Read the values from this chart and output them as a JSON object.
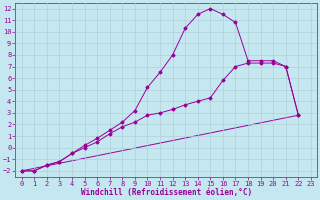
{
  "xlabel": "Windchill (Refroidissement éolien,°C)",
  "xlim": [
    -0.5,
    23.5
  ],
  "ylim": [
    -2.5,
    12.5
  ],
  "yticks": [
    -2,
    -1,
    0,
    1,
    2,
    3,
    4,
    5,
    6,
    7,
    8,
    9,
    10,
    11,
    12
  ],
  "xticks": [
    0,
    1,
    2,
    3,
    4,
    5,
    6,
    7,
    8,
    9,
    10,
    11,
    12,
    13,
    14,
    15,
    16,
    17,
    18,
    19,
    20,
    21,
    22,
    23
  ],
  "bg_color": "#c5e8f0",
  "line_color": "#990099",
  "grid_color": "#b0d0d8",
  "line1_x": [
    0,
    1,
    2,
    3,
    4,
    5,
    6,
    7,
    8,
    9,
    10,
    11,
    12,
    13,
    14,
    15,
    16,
    17,
    18,
    19,
    20,
    21,
    22
  ],
  "line1_y": [
    -2,
    -2,
    -1.5,
    -1.2,
    -0.5,
    0.2,
    0.8,
    1.5,
    2.2,
    3.2,
    5.2,
    6.5,
    8.0,
    10.3,
    11.5,
    12,
    11.5,
    10.8,
    7.5,
    7.5,
    7.5,
    7.0,
    2.8
  ],
  "line2_x": [
    0,
    1,
    2,
    3,
    4,
    5,
    6,
    7,
    8,
    9,
    10,
    11,
    12,
    13,
    14,
    15,
    16,
    17,
    18,
    19,
    20,
    21,
    22
  ],
  "line2_y": [
    -2,
    -2,
    -1.5,
    -1.2,
    -0.5,
    0.0,
    0.5,
    1.2,
    1.8,
    2.2,
    2.8,
    3.0,
    3.3,
    3.7,
    4.0,
    4.3,
    5.8,
    7.0,
    7.3,
    7.3,
    7.3,
    7.0,
    2.8
  ],
  "line3_x": [
    0,
    22
  ],
  "line3_y": [
    -2,
    2.8
  ],
  "marker_size": 1.5,
  "font_size": 5,
  "xlabel_size": 5.5
}
